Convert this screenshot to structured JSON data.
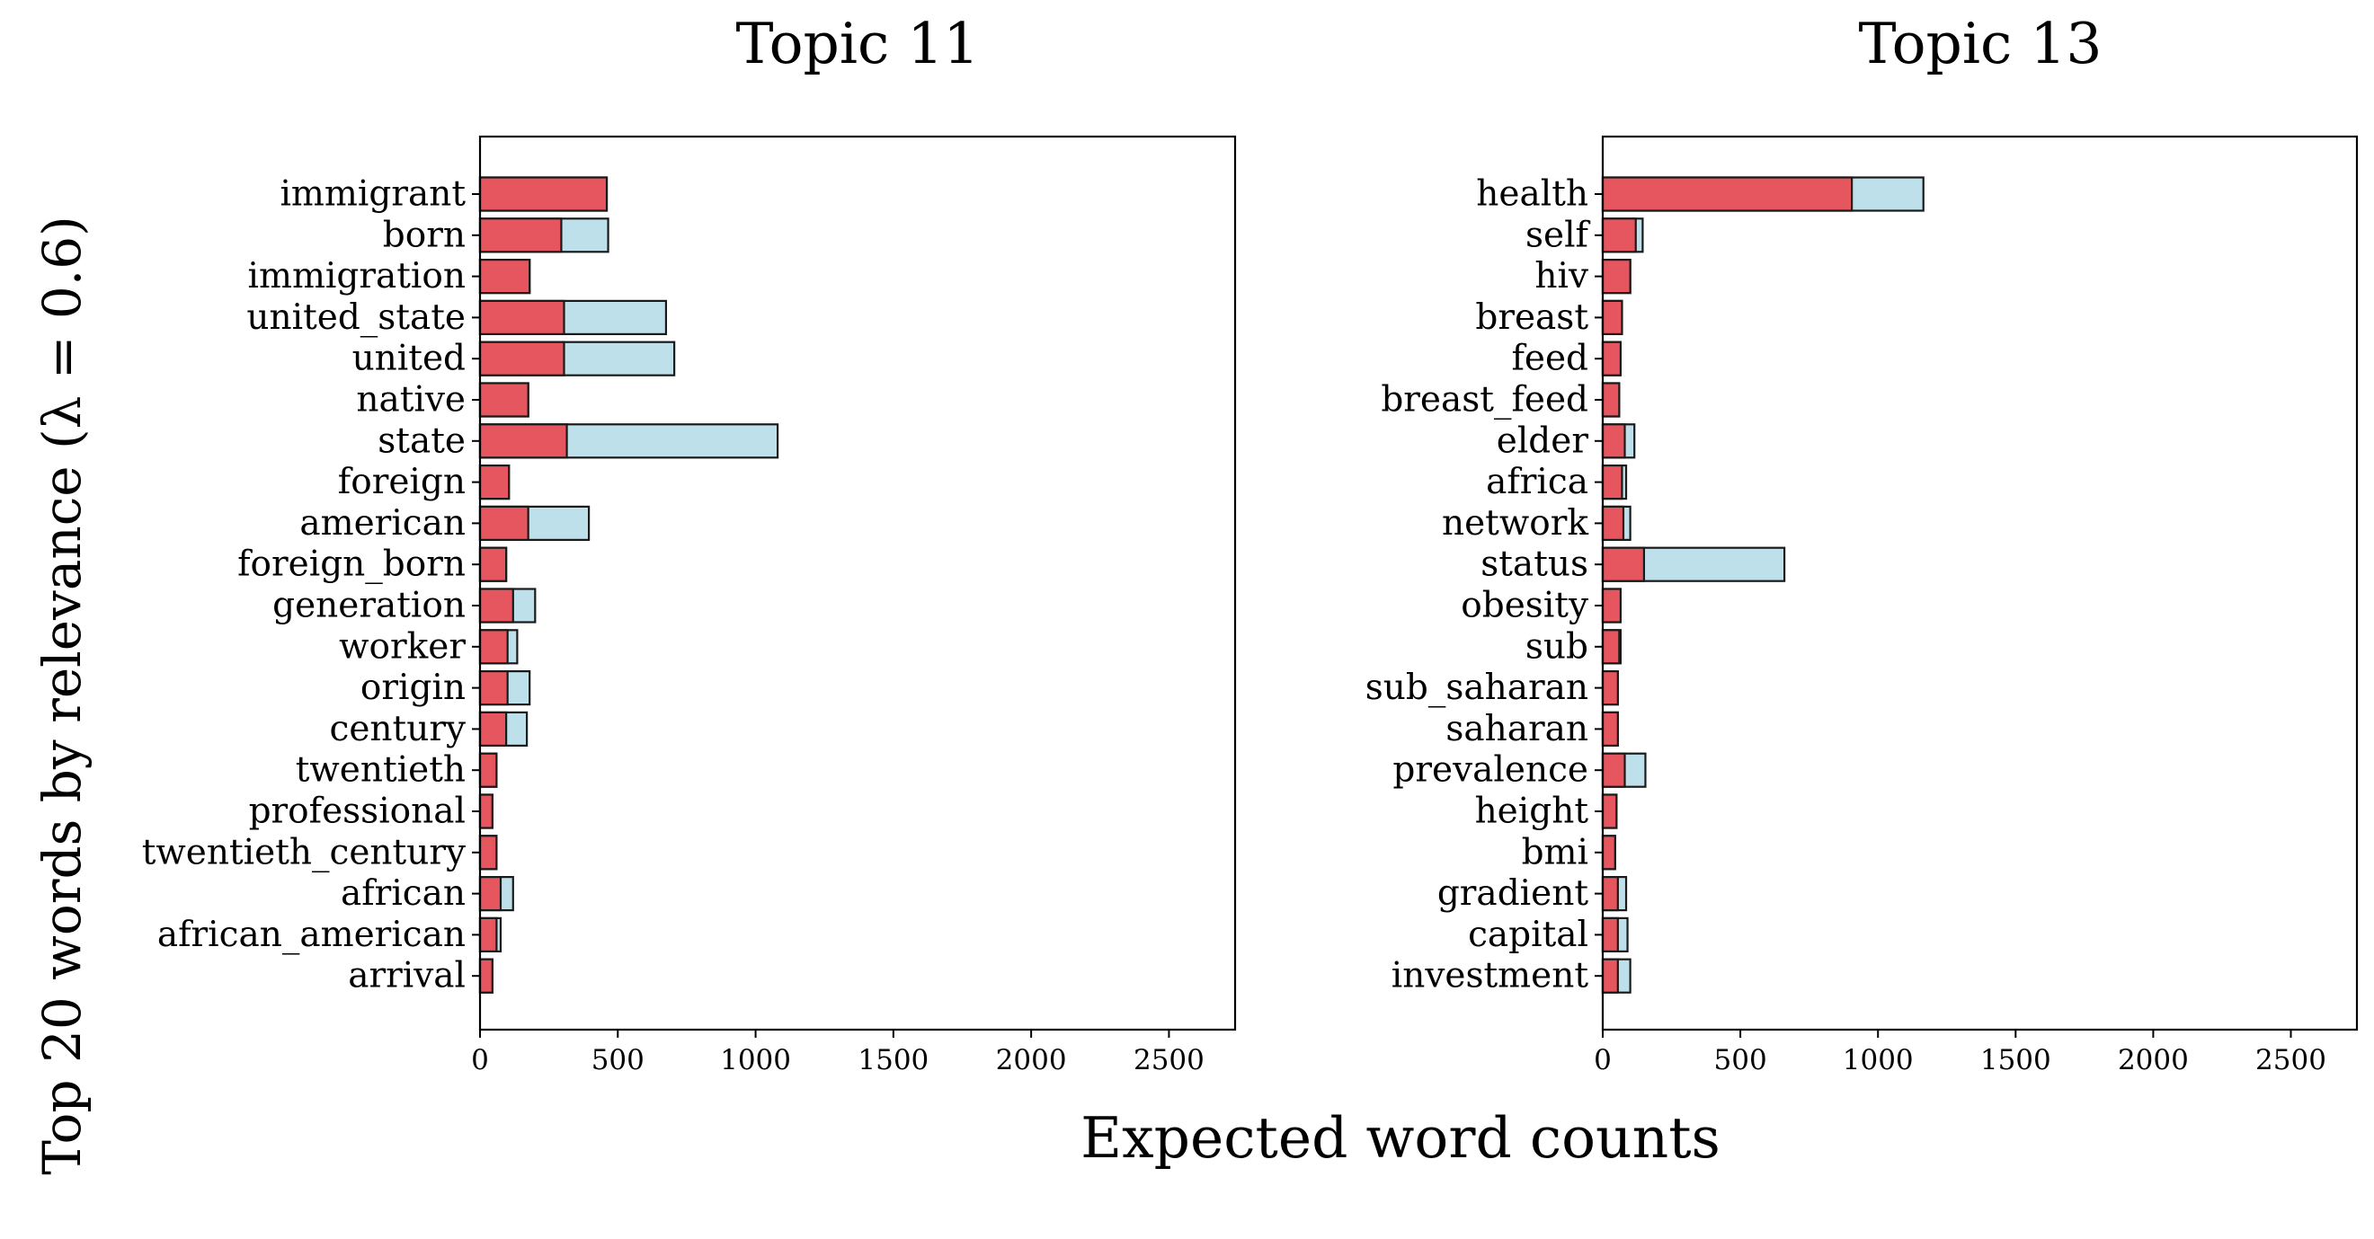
{
  "figure": {
    "ylabel": "Top 20 words by relevance (λ = 0.6)",
    "xlabel": "Expected word counts"
  },
  "colors": {
    "topic_bar": "#e5565e",
    "overall_bar": "#bde0ea",
    "edge": "#1a1a1a"
  },
  "chart_data": [
    {
      "type": "bar",
      "orientation": "horizontal",
      "stacked": "overlay",
      "title": "Topic 11",
      "xlim": [
        0,
        2740
      ],
      "xticks": [
        0,
        500,
        1000,
        1500,
        2000,
        2500
      ],
      "grid": false,
      "categories": [
        "immigrant",
        "born",
        "immigration",
        "united_state",
        "united",
        "native",
        "state",
        "foreign",
        "american",
        "foreign_born",
        "generation",
        "worker",
        "origin",
        "century",
        "twentieth",
        "professional",
        "twentieth_century",
        "african",
        "african_american",
        "arrival"
      ],
      "series": [
        {
          "values": [
            460,
            295,
            180,
            305,
            305,
            175,
            315,
            105,
            175,
            95,
            120,
            100,
            100,
            95,
            60,
            45,
            60,
            75,
            60,
            45
          ]
        },
        {
          "values": [
            460,
            465,
            180,
            675,
            705,
            175,
            1080,
            105,
            395,
            95,
            200,
            135,
            180,
            170,
            60,
            45,
            60,
            120,
            75,
            45
          ]
        }
      ]
    },
    {
      "type": "bar",
      "orientation": "horizontal",
      "stacked": "overlay",
      "title": "Topic 13",
      "xlim": [
        0,
        2740
      ],
      "xticks": [
        0,
        500,
        1000,
        1500,
        2000,
        2500
      ],
      "grid": false,
      "categories": [
        "health",
        "self",
        "hiv",
        "breast",
        "feed",
        "breast_feed",
        "elder",
        "africa",
        "network",
        "status",
        "obesity",
        "sub",
        "sub_saharan",
        "saharan",
        "prevalence",
        "height",
        "bmi",
        "gradient",
        "capital",
        "investment"
      ],
      "series": [
        {
          "values": [
            905,
            120,
            100,
            70,
            65,
            60,
            80,
            70,
            75,
            150,
            65,
            60,
            55,
            55,
            80,
            50,
            45,
            55,
            55,
            55
          ]
        },
        {
          "values": [
            1165,
            145,
            100,
            70,
            65,
            60,
            115,
            85,
            100,
            660,
            65,
            65,
            55,
            55,
            155,
            50,
            45,
            85,
            90,
            100
          ]
        }
      ]
    }
  ]
}
